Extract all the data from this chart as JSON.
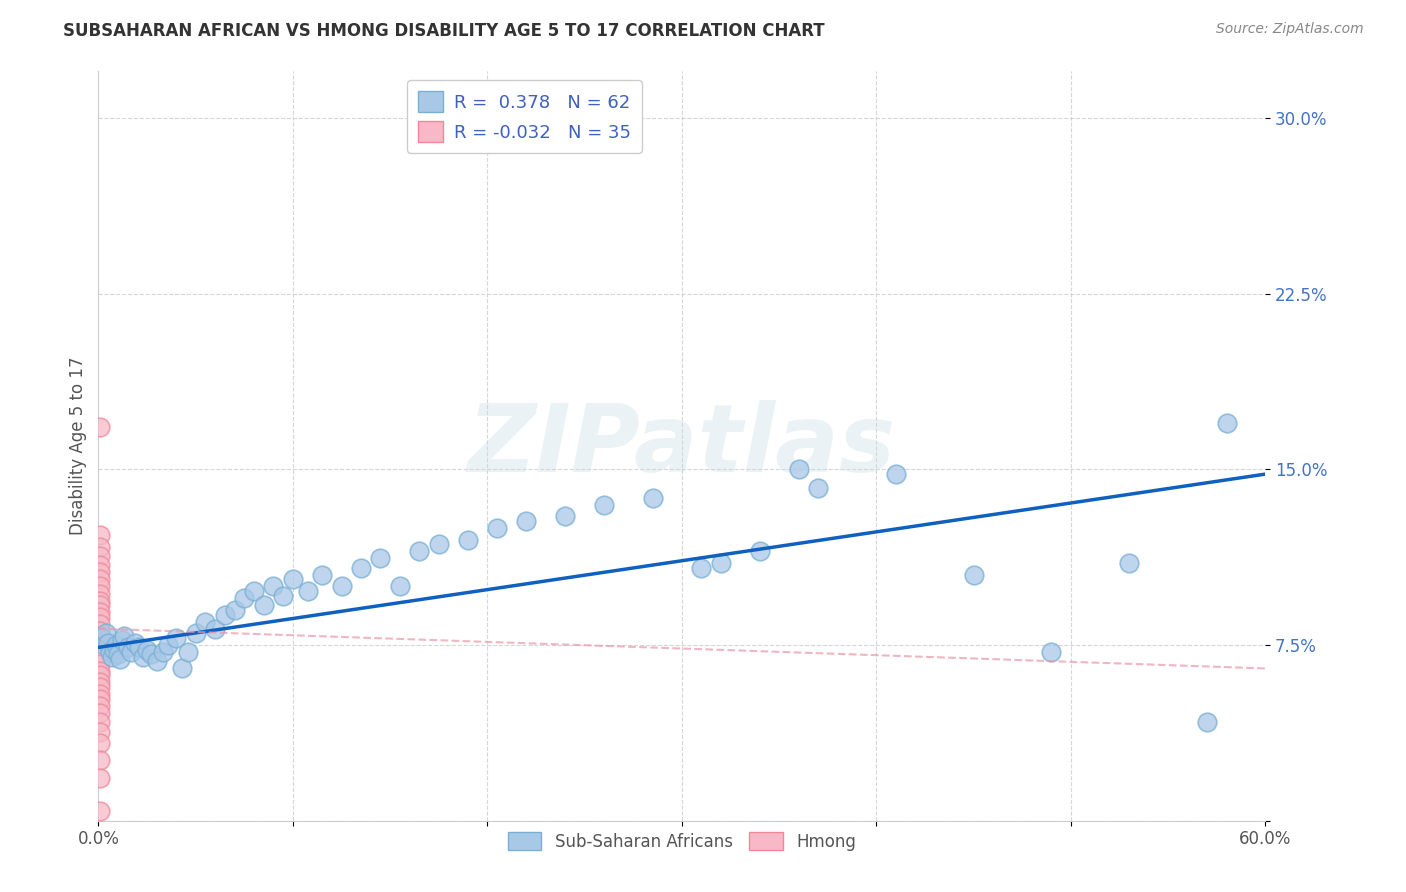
{
  "title": "SUBSAHARAN AFRICAN VS HMONG DISABILITY AGE 5 TO 17 CORRELATION CHART",
  "source": "Source: ZipAtlas.com",
  "ylabel": "Disability Age 5 to 17",
  "xlim": [
    0.0,
    0.6
  ],
  "ylim": [
    0.0,
    0.32
  ],
  "xticks": [
    0.0,
    0.1,
    0.2,
    0.3,
    0.4,
    0.5,
    0.6
  ],
  "yticks": [
    0.0,
    0.075,
    0.15,
    0.225,
    0.3
  ],
  "ytick_labels": [
    "",
    "7.5%",
    "15.0%",
    "22.5%",
    "30.0%"
  ],
  "xtick_labels": [
    "0.0%",
    "",
    "",
    "",
    "",
    "",
    "60.0%"
  ],
  "blue_r": 0.378,
  "blue_n": 62,
  "pink_r": -0.032,
  "pink_n": 35,
  "blue_color": "#a8c8e8",
  "blue_edge_color": "#7aafd4",
  "pink_color": "#f8b8c8",
  "pink_edge_color": "#f08898",
  "trend_blue_color": "#1060c0",
  "trend_pink_color": "#e898a8",
  "watermark": "ZIPatlas",
  "legend_label_color": "#4060c0",
  "blue_scatter_x": [
    0.002,
    0.003,
    0.004,
    0.005,
    0.006,
    0.007,
    0.008,
    0.009,
    0.01,
    0.011,
    0.012,
    0.013,
    0.015,
    0.017,
    0.019,
    0.021,
    0.023,
    0.025,
    0.027,
    0.03,
    0.033,
    0.036,
    0.04,
    0.043,
    0.046,
    0.05,
    0.055,
    0.06,
    0.065,
    0.07,
    0.075,
    0.08,
    0.085,
    0.09,
    0.095,
    0.1,
    0.108,
    0.115,
    0.125,
    0.135,
    0.145,
    0.155,
    0.165,
    0.175,
    0.19,
    0.205,
    0.22,
    0.24,
    0.26,
    0.285,
    0.31,
    0.34,
    0.37,
    0.41,
    0.45,
    0.49,
    0.53,
    0.57,
    0.32,
    0.36,
    0.175,
    0.58
  ],
  "blue_scatter_y": [
    0.078,
    0.075,
    0.08,
    0.076,
    0.072,
    0.07,
    0.073,
    0.075,
    0.071,
    0.069,
    0.077,
    0.079,
    0.074,
    0.072,
    0.076,
    0.074,
    0.07,
    0.073,
    0.071,
    0.068,
    0.072,
    0.075,
    0.078,
    0.065,
    0.072,
    0.08,
    0.085,
    0.082,
    0.088,
    0.09,
    0.095,
    0.098,
    0.092,
    0.1,
    0.096,
    0.103,
    0.098,
    0.105,
    0.1,
    0.108,
    0.112,
    0.1,
    0.115,
    0.118,
    0.12,
    0.125,
    0.128,
    0.13,
    0.135,
    0.138,
    0.108,
    0.115,
    0.142,
    0.148,
    0.105,
    0.072,
    0.11,
    0.042,
    0.11,
    0.15,
    0.295,
    0.17
  ],
  "pink_scatter_x": [
    0.001,
    0.001,
    0.001,
    0.001,
    0.001,
    0.001,
    0.001,
    0.001,
    0.001,
    0.001,
    0.001,
    0.001,
    0.001,
    0.001,
    0.001,
    0.001,
    0.001,
    0.001,
    0.001,
    0.001,
    0.001,
    0.001,
    0.001,
    0.001,
    0.001,
    0.001,
    0.001,
    0.001,
    0.001,
    0.001,
    0.001,
    0.001,
    0.001,
    0.001,
    0.001
  ],
  "pink_scatter_y": [
    0.168,
    0.122,
    0.117,
    0.113,
    0.109,
    0.106,
    0.103,
    0.1,
    0.097,
    0.094,
    0.092,
    0.089,
    0.087,
    0.084,
    0.081,
    0.079,
    0.076,
    0.074,
    0.071,
    0.069,
    0.067,
    0.064,
    0.062,
    0.059,
    0.057,
    0.054,
    0.052,
    0.049,
    0.046,
    0.042,
    0.038,
    0.033,
    0.026,
    0.018,
    0.004
  ],
  "blue_trend_x": [
    0.0,
    0.6
  ],
  "blue_trend_y": [
    0.074,
    0.148
  ],
  "pink_trend_x": [
    0.0,
    0.6
  ],
  "pink_trend_y": [
    0.082,
    0.065
  ]
}
